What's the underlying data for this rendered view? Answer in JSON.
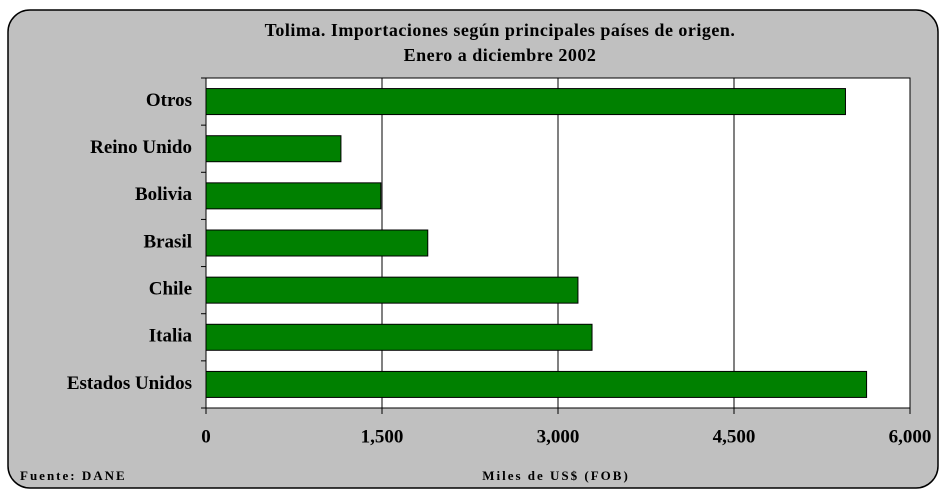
{
  "chart_data": {
    "type": "bar",
    "orientation": "horizontal",
    "title": "Tolima.  Importaciones según principales países de origen.",
    "subtitle": "Enero a diciembre 2002",
    "categories": [
      "Otros",
      "Reino Unido",
      "Bolivia",
      "Brasil",
      "Chile",
      "Italia",
      "Estados Unidos"
    ],
    "values": [
      5450,
      1150,
      1490,
      1890,
      3170,
      3290,
      5630
    ],
    "color": "#008000",
    "xlim": [
      0,
      6000
    ],
    "xticks": [
      0,
      {
        "value": 1500,
        "label": "1,500"
      },
      {
        "value": 3000,
        "label": "3,000"
      },
      {
        "value": 4500,
        "label": "4,500"
      },
      {
        "value": 6000,
        "label": "6,000"
      }
    ],
    "xlabel": "Miles de US$ (FOB)",
    "source": "Fuente: DANE",
    "grid": true
  }
}
